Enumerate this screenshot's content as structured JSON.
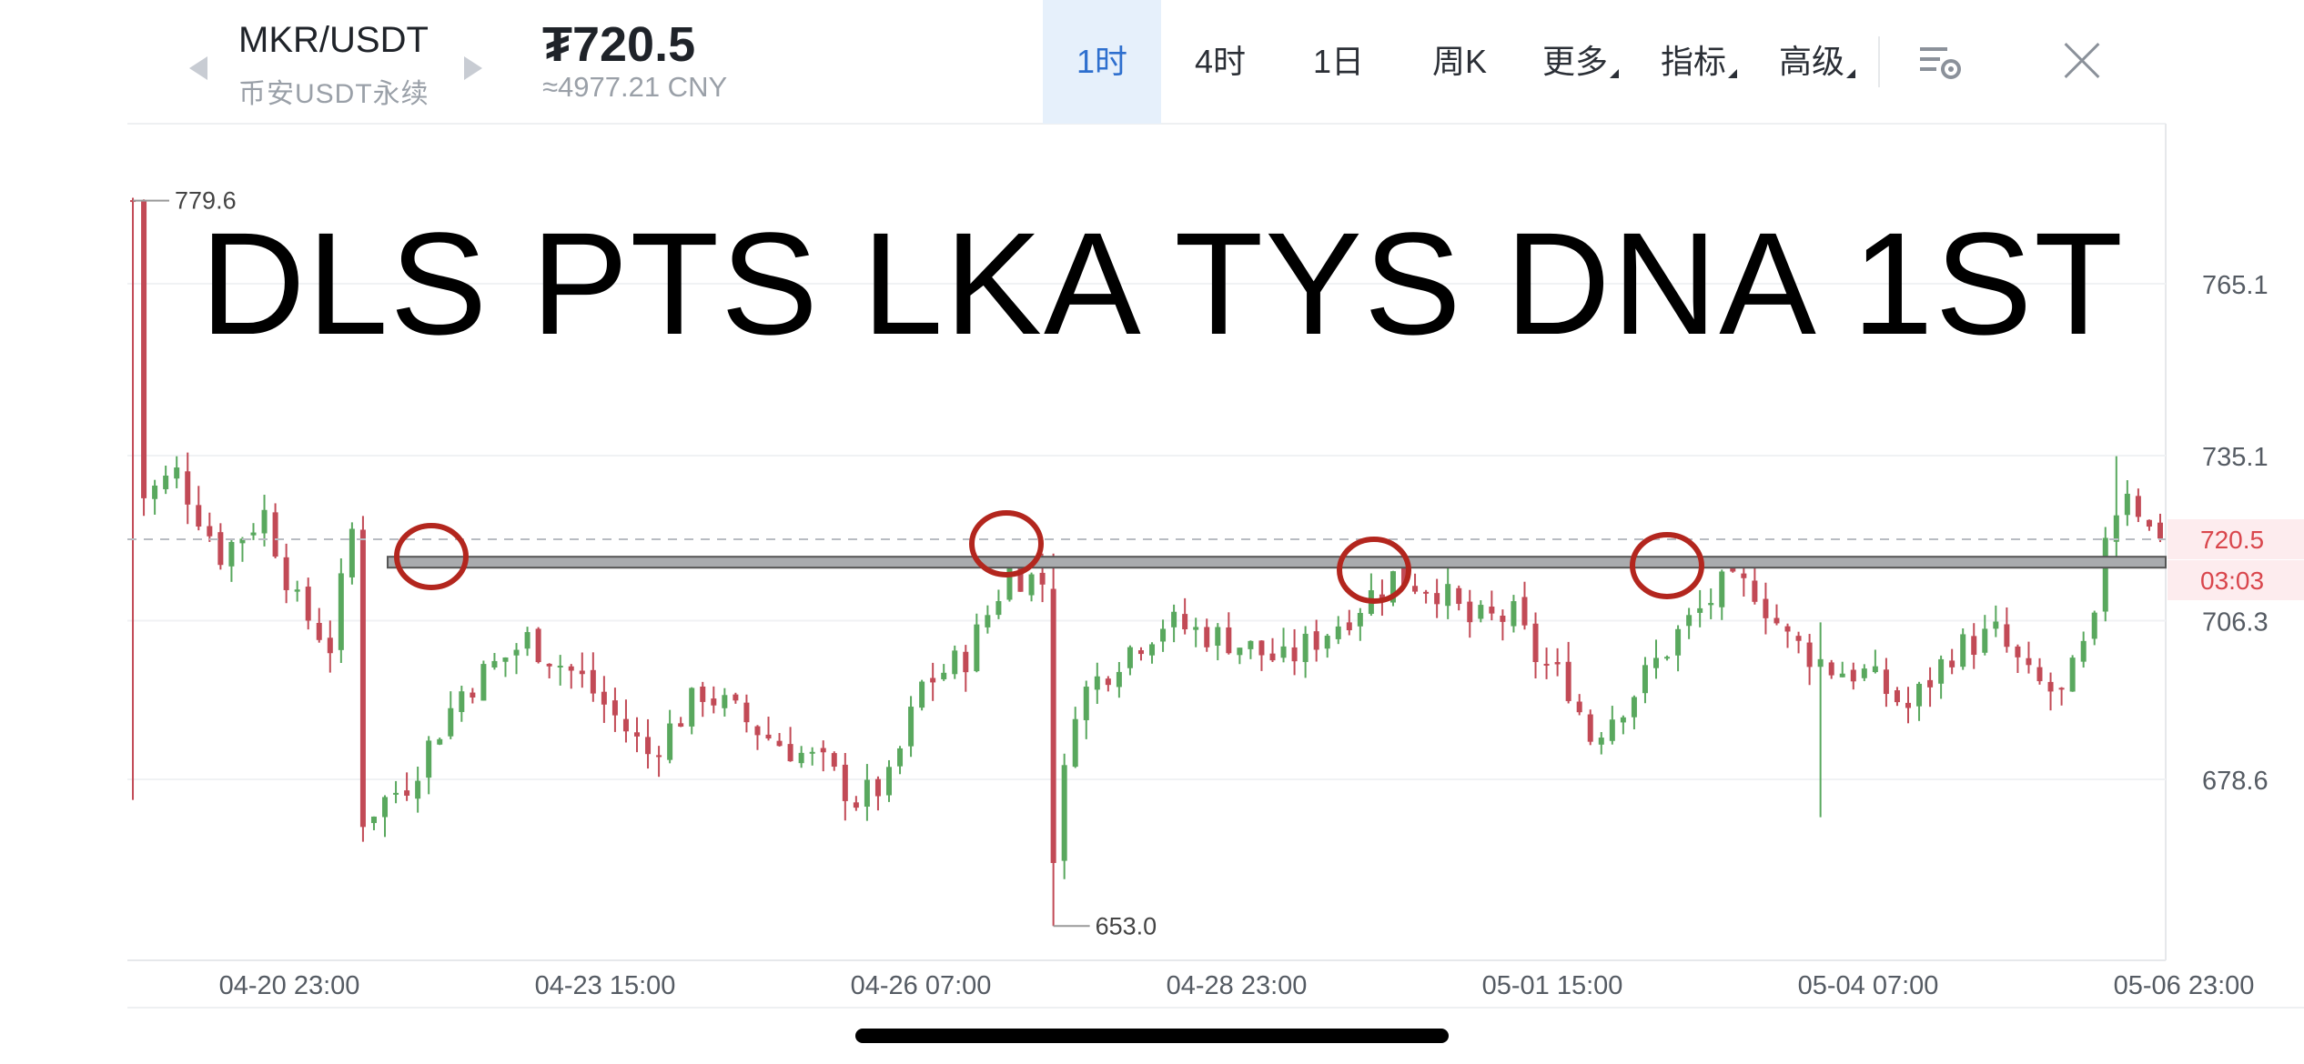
{
  "header": {
    "pair": "MKR/USDT",
    "exchange": "币安USDT永续",
    "price": "₮720.5",
    "price_cny": "≈4977.21 CNY",
    "tabs": [
      {
        "label": "1时",
        "active": true
      },
      {
        "label": "4时",
        "active": false
      },
      {
        "label": "1日",
        "active": false
      },
      {
        "label": "周K",
        "active": false
      },
      {
        "label": "更多",
        "active": false
      },
      {
        "label": "指标",
        "active": false
      },
      {
        "label": "高级",
        "active": false
      }
    ]
  },
  "overlay_text": "DLS PTS LKA TYS DNA 1ST",
  "colors": {
    "up": "#59a85e",
    "down": "#c24a56",
    "accent": "#2e6fce",
    "marker": "#b3261e"
  },
  "chart_data": {
    "type": "candlestick",
    "x_ticks": [
      "04-20 23:00",
      "04-23 15:00",
      "04-26 07:00",
      "04-28 23:00",
      "05-01 15:00",
      "05-04 07:00",
      "05-06 23:00"
    ],
    "y_ticks": [
      765.1,
      735.1,
      706.3,
      678.6
    ],
    "current_price": "720.5",
    "countdown": "03:03",
    "high_label": "779.6",
    "low_label": "653.0",
    "resistance_level": 716.5,
    "close_path": [
      [
        0,
        779.6
      ],
      [
        1,
        728
      ],
      [
        4,
        732
      ],
      [
        8,
        718
      ],
      [
        12,
        725
      ],
      [
        15,
        709
      ],
      [
        18,
        702
      ],
      [
        20,
        722
      ],
      [
        21,
        672
      ],
      [
        25,
        678
      ],
      [
        30,
        694
      ],
      [
        36,
        703
      ],
      [
        41,
        696
      ],
      [
        47,
        683
      ],
      [
        52,
        694
      ],
      [
        58,
        686
      ],
      [
        63,
        681
      ],
      [
        66,
        675
      ],
      [
        69,
        678
      ],
      [
        72,
        695
      ],
      [
        76,
        700
      ],
      [
        80,
        715
      ],
      [
        83,
        713
      ],
      [
        84,
        666
      ],
      [
        86,
        692
      ],
      [
        90,
        700
      ],
      [
        94,
        706
      ],
      [
        100,
        703
      ],
      [
        105,
        699
      ],
      [
        110,
        706
      ],
      [
        115,
        714
      ],
      [
        119,
        712
      ],
      [
        122,
        706
      ],
      [
        126,
        707
      ],
      [
        128,
        700
      ],
      [
        131,
        695
      ],
      [
        133,
        686
      ],
      [
        137,
        694
      ],
      [
        141,
        704
      ],
      [
        145,
        712
      ],
      [
        148,
        712
      ],
      [
        151,
        703
      ],
      [
        155,
        698
      ],
      [
        158,
        697
      ],
      [
        162,
        691
      ],
      [
        166,
        701
      ],
      [
        170,
        704
      ],
      [
        173,
        696
      ],
      [
        176,
        693
      ],
      [
        179,
        705
      ],
      [
        180,
        722
      ],
      [
        182,
        730
      ],
      [
        184,
        722
      ]
    ]
  }
}
